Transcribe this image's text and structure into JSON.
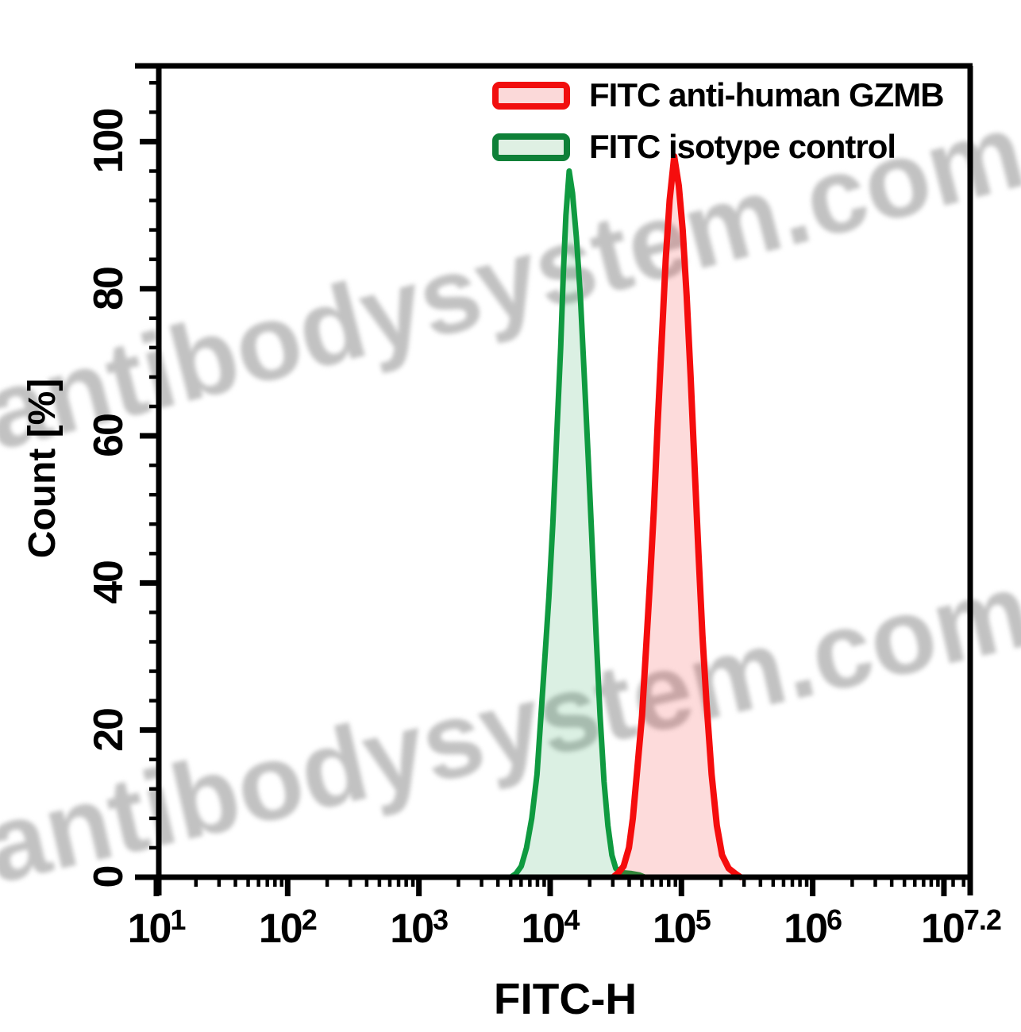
{
  "watermark": {
    "text": "antibodysystem.com",
    "color": "#c2c2c2"
  },
  "legend": {
    "items": [
      {
        "label": "FITC anti-human GZMB",
        "stroke": "#f10e0e",
        "fill": "#fbd9d9"
      },
      {
        "label": "FITC isotype control",
        "stroke": "#0e8038",
        "fill": "#dff0e3"
      }
    ]
  },
  "chart_data": {
    "type": "area",
    "title": "",
    "xlabel": "FITC-H",
    "ylabel": "Count [%]",
    "x_scale": "log10",
    "x_range_log": [
      1,
      7.2
    ],
    "y_range": [
      0,
      110
    ],
    "grid": false,
    "legend_position": "top-right-inside",
    "x_axis": {
      "tick_base": "10",
      "major_ticks": [
        {
          "log": 1,
          "exp": "1"
        },
        {
          "log": 2,
          "exp": "2"
        },
        {
          "log": 3,
          "exp": "3"
        },
        {
          "log": 4,
          "exp": "4"
        },
        {
          "log": 5,
          "exp": "5"
        },
        {
          "log": 6,
          "exp": "6"
        },
        {
          "log": 7,
          "exp": null
        },
        {
          "log": 7.2,
          "exp": "7.2",
          "label_log": 7.13,
          "draw_tick": false
        }
      ],
      "extra_minor_ticks_log": [
        7.07,
        7.15
      ]
    },
    "y_axis": {
      "major_ticks": [
        {
          "v": 0,
          "label": "0"
        },
        {
          "v": 20,
          "label": "20"
        },
        {
          "v": 40,
          "label": "40"
        },
        {
          "v": 60,
          "label": "60"
        },
        {
          "v": 80,
          "label": "80"
        },
        {
          "v": 100,
          "label": "100"
        }
      ],
      "minor_step": 4,
      "minor_max": 108
    },
    "series": [
      {
        "name": "FITC isotype control",
        "stroke": "#0f9a40",
        "fill_rgba": "rgba(16,154,64,0.15)",
        "stroke_width": 7,
        "peak_log_x": 4.15,
        "peak_percent": 96,
        "points_log_x_percent": [
          [
            3.7,
            0
          ],
          [
            3.74,
            0.5
          ],
          [
            3.78,
            1.5
          ],
          [
            3.82,
            4
          ],
          [
            3.86,
            8
          ],
          [
            3.9,
            14
          ],
          [
            3.93,
            22
          ],
          [
            3.96,
            30
          ],
          [
            3.99,
            38
          ],
          [
            4.02,
            48
          ],
          [
            4.05,
            60
          ],
          [
            4.08,
            72
          ],
          [
            4.1,
            82
          ],
          [
            4.12,
            90
          ],
          [
            4.145,
            96
          ],
          [
            4.17,
            93
          ],
          [
            4.2,
            87
          ],
          [
            4.23,
            79
          ],
          [
            4.26,
            68
          ],
          [
            4.29,
            57
          ],
          [
            4.32,
            45
          ],
          [
            4.35,
            33
          ],
          [
            4.38,
            22
          ],
          [
            4.41,
            13
          ],
          [
            4.44,
            7
          ],
          [
            4.47,
            3
          ],
          [
            4.5,
            1.2
          ],
          [
            4.55,
            0.6
          ],
          [
            4.62,
            0.5
          ],
          [
            4.68,
            0.3
          ],
          [
            4.72,
            0
          ]
        ]
      },
      {
        "name": "FITC anti-human GZMB",
        "stroke": "#f50d0d",
        "fill_rgba": "rgba(245,30,30,0.16)",
        "stroke_width": 8,
        "peak_log_x": 4.95,
        "peak_percent": 98,
        "points_log_x_percent": [
          [
            4.48,
            0
          ],
          [
            4.52,
            0.6
          ],
          [
            4.56,
            1.5
          ],
          [
            4.6,
            4
          ],
          [
            4.63,
            8
          ],
          [
            4.66,
            14
          ],
          [
            4.7,
            22
          ],
          [
            4.73,
            31
          ],
          [
            4.76,
            40
          ],
          [
            4.79,
            50
          ],
          [
            4.82,
            62
          ],
          [
            4.85,
            73
          ],
          [
            4.88,
            84
          ],
          [
            4.91,
            92
          ],
          [
            4.945,
            98
          ],
          [
            4.98,
            94
          ],
          [
            5.01,
            88
          ],
          [
            5.04,
            79
          ],
          [
            5.07,
            68
          ],
          [
            5.1,
            56
          ],
          [
            5.13,
            44
          ],
          [
            5.16,
            33
          ],
          [
            5.19,
            24
          ],
          [
            5.23,
            14
          ],
          [
            5.27,
            7
          ],
          [
            5.31,
            3
          ],
          [
            5.36,
            1.2
          ],
          [
            5.41,
            0.5
          ],
          [
            5.45,
            0
          ]
        ]
      }
    ]
  }
}
